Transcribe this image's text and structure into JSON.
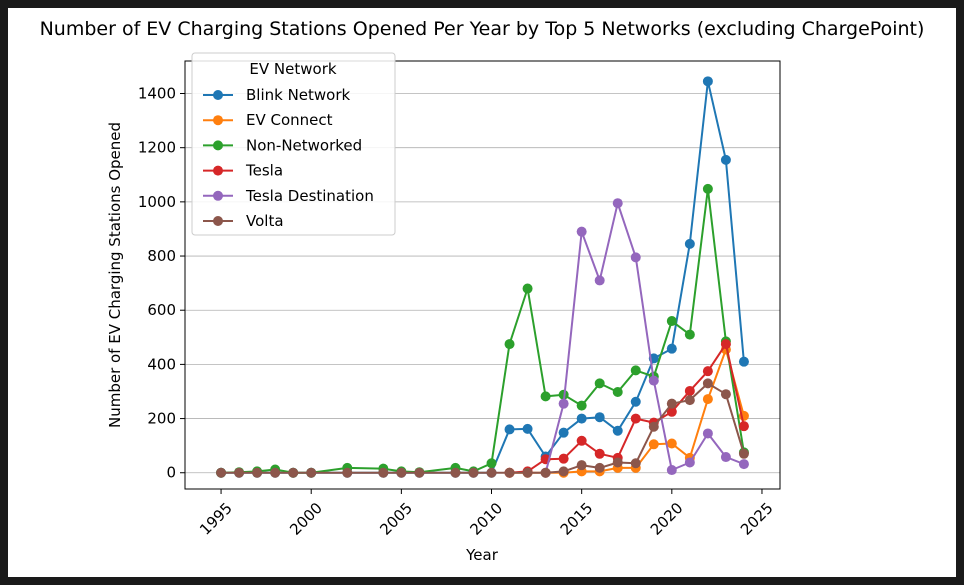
{
  "chart_data": {
    "type": "line",
    "title": "Number of EV Charging Stations Opened Per Year by Top 5 Networks (excluding ChargePoint)",
    "xlabel": "Year",
    "ylabel": "Number of EV Charging Stations Opened",
    "xlim": [
      1993,
      2026
    ],
    "ylim": [
      -60,
      1520
    ],
    "xticks": [
      1995,
      2000,
      2005,
      2010,
      2015,
      2020,
      2025
    ],
    "yticks": [
      0,
      200,
      400,
      600,
      800,
      1000,
      1200,
      1400
    ],
    "grid": "horizontal",
    "legend": {
      "title": "EV Network",
      "placement": "top-left"
    },
    "series": [
      {
        "name": "Blink Network",
        "color": "#1f77b4",
        "points": [
          [
            1995,
            0
          ],
          [
            1996,
            0
          ],
          [
            1997,
            0
          ],
          [
            1998,
            0
          ],
          [
            1999,
            0
          ],
          [
            2000,
            0
          ],
          [
            2002,
            0
          ],
          [
            2004,
            0
          ],
          [
            2005,
            0
          ],
          [
            2006,
            0
          ],
          [
            2008,
            0
          ],
          [
            2009,
            0
          ],
          [
            2010,
            0
          ],
          [
            2011,
            160
          ],
          [
            2012,
            162
          ],
          [
            2013,
            60
          ],
          [
            2014,
            148
          ],
          [
            2015,
            200
          ],
          [
            2016,
            205
          ],
          [
            2017,
            155
          ],
          [
            2018,
            262
          ],
          [
            2019,
            422
          ],
          [
            2020,
            458
          ],
          [
            2021,
            845
          ],
          [
            2022,
            1445
          ],
          [
            2023,
            1155
          ],
          [
            2024,
            410
          ]
        ]
      },
      {
        "name": "EV Connect",
        "color": "#ff7f0e",
        "points": [
          [
            2011,
            0
          ],
          [
            2012,
            0
          ],
          [
            2013,
            0
          ],
          [
            2014,
            0
          ],
          [
            2015,
            5
          ],
          [
            2016,
            5
          ],
          [
            2017,
            18
          ],
          [
            2018,
            18
          ],
          [
            2019,
            105
          ],
          [
            2020,
            108
          ],
          [
            2021,
            55
          ],
          [
            2022,
            272
          ],
          [
            2023,
            455
          ],
          [
            2024,
            210
          ]
        ]
      },
      {
        "name": "Non-Networked",
        "color": "#2ca02c",
        "points": [
          [
            1995,
            0
          ],
          [
            1996,
            2
          ],
          [
            1997,
            5
          ],
          [
            1998,
            12
          ],
          [
            1999,
            0
          ],
          [
            2000,
            0
          ],
          [
            2002,
            18
          ],
          [
            2004,
            15
          ],
          [
            2005,
            5
          ],
          [
            2006,
            2
          ],
          [
            2008,
            18
          ],
          [
            2009,
            5
          ],
          [
            2010,
            35
          ],
          [
            2011,
            475
          ],
          [
            2012,
            680
          ],
          [
            2013,
            282
          ],
          [
            2014,
            288
          ],
          [
            2015,
            248
          ],
          [
            2016,
            330
          ],
          [
            2017,
            298
          ],
          [
            2018,
            378
          ],
          [
            2019,
            355
          ],
          [
            2020,
            560
          ],
          [
            2021,
            510
          ],
          [
            2022,
            1048
          ],
          [
            2023,
            485
          ],
          [
            2024,
            75
          ]
        ]
      },
      {
        "name": "Tesla",
        "color": "#d62728",
        "points": [
          [
            2011,
            0
          ],
          [
            2012,
            5
          ],
          [
            2013,
            50
          ],
          [
            2014,
            52
          ],
          [
            2015,
            118
          ],
          [
            2016,
            70
          ],
          [
            2017,
            55
          ],
          [
            2018,
            200
          ],
          [
            2019,
            185
          ],
          [
            2020,
            225
          ],
          [
            2021,
            302
          ],
          [
            2022,
            375
          ],
          [
            2023,
            475
          ],
          [
            2024,
            172
          ]
        ]
      },
      {
        "name": "Tesla Destination",
        "color": "#9467bd",
        "points": [
          [
            2013,
            0
          ],
          [
            2014,
            255
          ],
          [
            2015,
            890
          ],
          [
            2016,
            710
          ],
          [
            2017,
            995
          ],
          [
            2018,
            795
          ],
          [
            2019,
            340
          ],
          [
            2020,
            10
          ],
          [
            2021,
            38
          ],
          [
            2022,
            145
          ],
          [
            2023,
            58
          ],
          [
            2024,
            32
          ]
        ]
      },
      {
        "name": "Volta",
        "color": "#8c564b",
        "points": [
          [
            1995,
            0
          ],
          [
            1996,
            0
          ],
          [
            1997,
            0
          ],
          [
            1998,
            0
          ],
          [
            1999,
            0
          ],
          [
            2000,
            0
          ],
          [
            2002,
            0
          ],
          [
            2004,
            0
          ],
          [
            2005,
            0
          ],
          [
            2006,
            0
          ],
          [
            2008,
            0
          ],
          [
            2009,
            0
          ],
          [
            2010,
            0
          ],
          [
            2011,
            0
          ],
          [
            2012,
            0
          ],
          [
            2013,
            0
          ],
          [
            2014,
            5
          ],
          [
            2015,
            28
          ],
          [
            2016,
            18
          ],
          [
            2017,
            38
          ],
          [
            2018,
            35
          ],
          [
            2019,
            170
          ],
          [
            2020,
            255
          ],
          [
            2021,
            268
          ],
          [
            2022,
            330
          ],
          [
            2023,
            290
          ],
          [
            2024,
            70
          ]
        ]
      }
    ]
  }
}
